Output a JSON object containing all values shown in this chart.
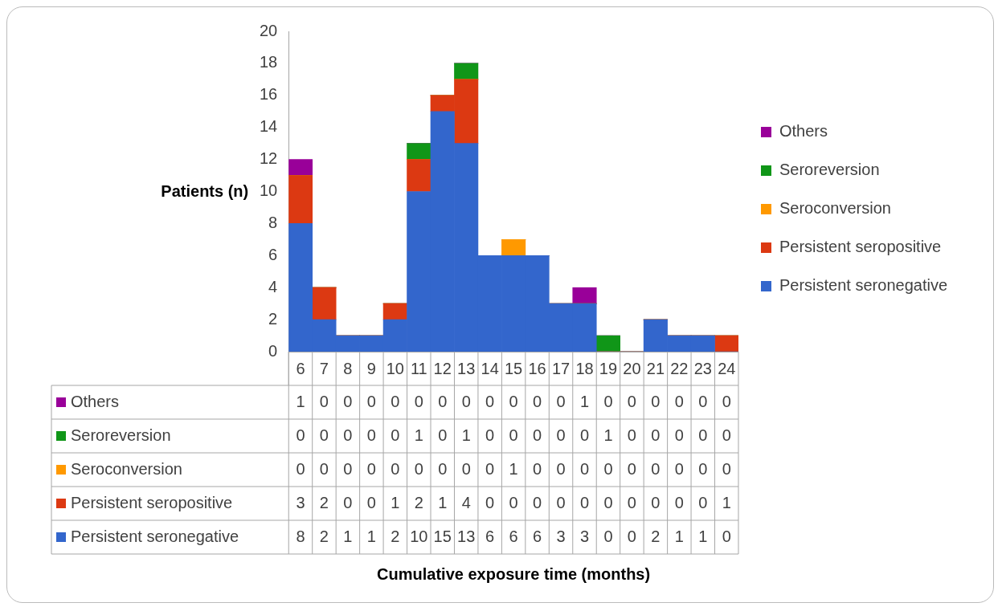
{
  "chart_data": {
    "type": "bar",
    "stacked": true,
    "ylabel": "Patients (n)",
    "annotations": [
      "Cumulative exposure time (months)"
    ],
    "categories": [
      "6",
      "7",
      "8",
      "9",
      "10",
      "11",
      "12",
      "13",
      "14",
      "15",
      "16",
      "17",
      "18",
      "19",
      "20",
      "21",
      "22",
      "23",
      "24"
    ],
    "ylim": [
      0,
      20
    ],
    "yticks": [
      0,
      2,
      4,
      6,
      8,
      10,
      12,
      14,
      16,
      18,
      20
    ],
    "grid": false,
    "legend": "right",
    "data_labels": true,
    "series": [
      {
        "name": "Persistent seronegative",
        "color": "#3366cc",
        "values": [
          8,
          2,
          1,
          1,
          2,
          10,
          15,
          13,
          6,
          6,
          6,
          3,
          3,
          0,
          0,
          2,
          1,
          1,
          0
        ]
      },
      {
        "name": "Persistent seropositive",
        "color": "#dc3912",
        "values": [
          3,
          2,
          0,
          0,
          1,
          2,
          1,
          4,
          0,
          0,
          0,
          0,
          0,
          0,
          0,
          0,
          0,
          0,
          1
        ]
      },
      {
        "name": "Seroconversion",
        "color": "#ff9900",
        "values": [
          0,
          0,
          0,
          0,
          0,
          0,
          0,
          0,
          0,
          1,
          0,
          0,
          0,
          0,
          0,
          0,
          0,
          0,
          0
        ]
      },
      {
        "name": "Seroreversion",
        "color": "#109618",
        "values": [
          0,
          0,
          0,
          0,
          0,
          1,
          0,
          1,
          0,
          0,
          0,
          0,
          0,
          1,
          0,
          0,
          0,
          0,
          0
        ]
      },
      {
        "name": "Others",
        "color": "#990099",
        "values": [
          1,
          0,
          0,
          0,
          0,
          0,
          0,
          0,
          0,
          0,
          0,
          0,
          1,
          0,
          0,
          0,
          0,
          0,
          0
        ]
      }
    ]
  }
}
